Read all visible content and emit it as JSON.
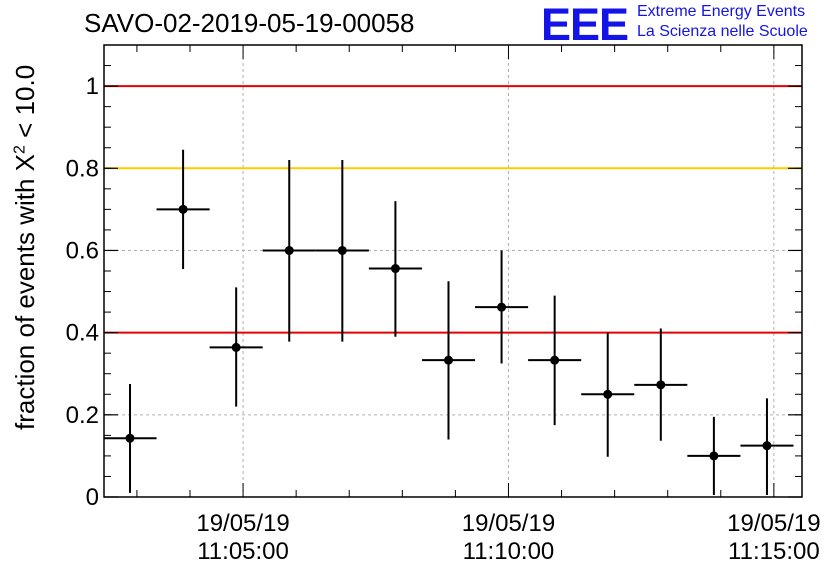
{
  "page": {
    "title": "SAVO-02-2019-05-19-00058",
    "logo": {
      "mark": "EEE",
      "line1": "Extreme Energy Events",
      "line2": "La Scienza nelle Scuole",
      "color": "#1414e6"
    }
  },
  "chart_data": {
    "type": "scatter",
    "title": "SAVO-02-2019-05-19-00058",
    "xlabel": "",
    "ylabel_prefix": "fraction of events with ",
    "ylabel_symbol": "X",
    "ylabel_sup": "2",
    "ylabel_suffix": " < 10.0",
    "x_unit": "minutes after 11:00:00",
    "xlim": [
      2.38,
      15.53
    ],
    "ylim": [
      0,
      1.1
    ],
    "grid": true,
    "x_ticks": [
      {
        "x": 5,
        "date": "19/05/19",
        "time": "11:05:00"
      },
      {
        "x": 10,
        "date": "19/05/19",
        "time": "11:10:00"
      },
      {
        "x": 15,
        "date": "19/05/19",
        "time": "11:15:00"
      }
    ],
    "y_ticks": [
      {
        "y": 0,
        "label": "0"
      },
      {
        "y": 0.2,
        "label": "0.2"
      },
      {
        "y": 0.4,
        "label": "0.4"
      },
      {
        "y": 0.6,
        "label": "0.6"
      },
      {
        "y": 0.8,
        "label": "0.8"
      },
      {
        "y": 1.0,
        "label": "1"
      }
    ],
    "reference_lines": [
      {
        "y": 1.0,
        "color": "#e60000"
      },
      {
        "y": 0.8,
        "color": "#ffcc00"
      },
      {
        "y": 0.4,
        "color": "#e60000"
      }
    ],
    "points": [
      {
        "x": 2.87,
        "y": 0.143,
        "xerr": 0.5,
        "ylo": 0.01,
        "yhi": 0.275
      },
      {
        "x": 3.87,
        "y": 0.7,
        "xerr": 0.5,
        "ylo": 0.555,
        "yhi": 0.845
      },
      {
        "x": 4.87,
        "y": 0.364,
        "xerr": 0.5,
        "ylo": 0.22,
        "yhi": 0.51
      },
      {
        "x": 5.87,
        "y": 0.6,
        "xerr": 0.5,
        "ylo": 0.378,
        "yhi": 0.82
      },
      {
        "x": 6.87,
        "y": 0.6,
        "xerr": 0.5,
        "ylo": 0.378,
        "yhi": 0.82
      },
      {
        "x": 7.87,
        "y": 0.556,
        "xerr": 0.5,
        "ylo": 0.39,
        "yhi": 0.72
      },
      {
        "x": 8.87,
        "y": 0.333,
        "xerr": 0.5,
        "ylo": 0.14,
        "yhi": 0.525
      },
      {
        "x": 9.87,
        "y": 0.462,
        "xerr": 0.5,
        "ylo": 0.325,
        "yhi": 0.6
      },
      {
        "x": 10.87,
        "y": 0.333,
        "xerr": 0.5,
        "ylo": 0.175,
        "yhi": 0.49
      },
      {
        "x": 11.87,
        "y": 0.25,
        "xerr": 0.5,
        "ylo": 0.098,
        "yhi": 0.4
      },
      {
        "x": 12.87,
        "y": 0.273,
        "xerr": 0.5,
        "ylo": 0.137,
        "yhi": 0.41
      },
      {
        "x": 13.87,
        "y": 0.1,
        "xerr": 0.5,
        "ylo": 0.005,
        "yhi": 0.195
      },
      {
        "x": 14.87,
        "y": 0.125,
        "xerr": 0.5,
        "ylo": 0.005,
        "yhi": 0.24
      }
    ]
  }
}
